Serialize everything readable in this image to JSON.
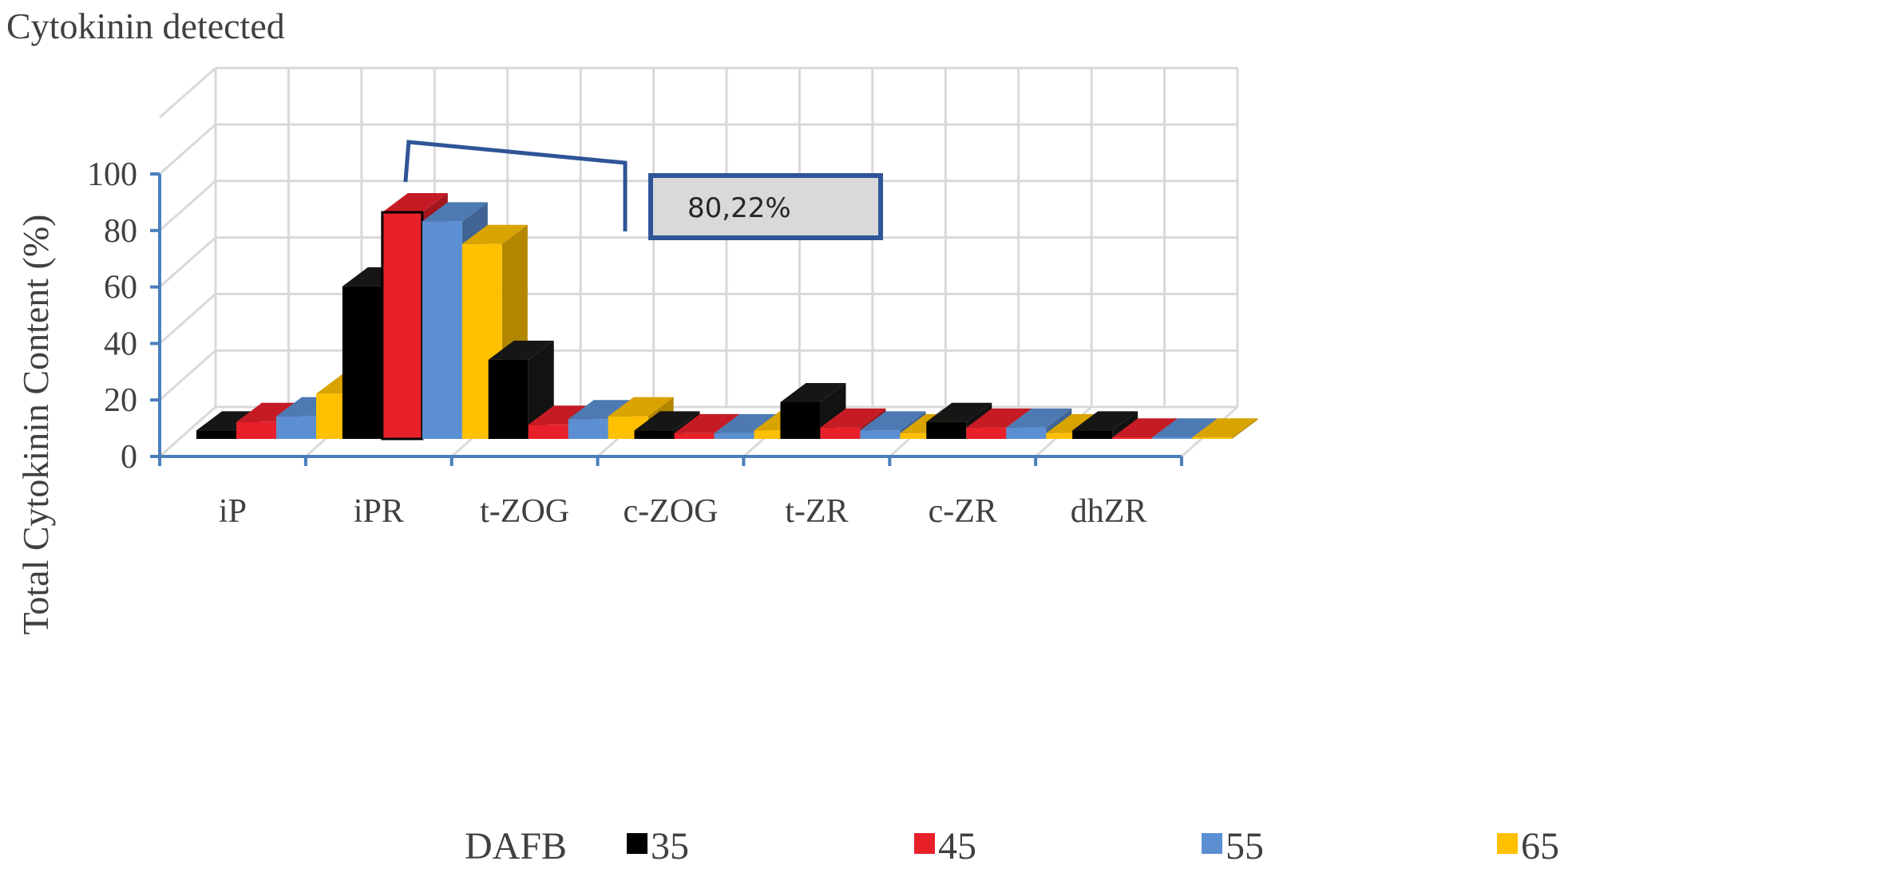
{
  "header": {
    "title": "Cytokinin detected"
  },
  "chart_data": {
    "type": "bar",
    "title": "Cytokinin detected",
    "xlabel": "",
    "ylabel": "Total Cytokinin Content (%)",
    "ylim": [
      0,
      100
    ],
    "yticks": [
      0,
      20,
      40,
      60,
      80,
      100
    ],
    "grid": true,
    "categories": [
      "iP",
      "iPR",
      "t-ZOG",
      "c-ZOG",
      "t-ZR",
      "c-ZR",
      "dhZR"
    ],
    "legend": {
      "title": "DAFB",
      "placement": "bottom"
    },
    "series": [
      {
        "name": "35",
        "color": "#000000",
        "values": [
          3,
          54,
          28,
          3,
          13,
          6,
          3
        ]
      },
      {
        "name": "45",
        "color": "#e8202a",
        "values": [
          6,
          80.22,
          5,
          2,
          4,
          4,
          0.5
        ]
      },
      {
        "name": "55",
        "color": "#5b8fd2",
        "values": [
          8,
          77,
          7,
          2,
          3,
          4,
          0.5
        ]
      },
      {
        "name": "65",
        "color": "#ffc000",
        "values": [
          16,
          69,
          8,
          3,
          2,
          2,
          0.5
        ]
      }
    ],
    "annotation": {
      "text": "80,22%",
      "category": "iPR",
      "series": "45"
    }
  }
}
